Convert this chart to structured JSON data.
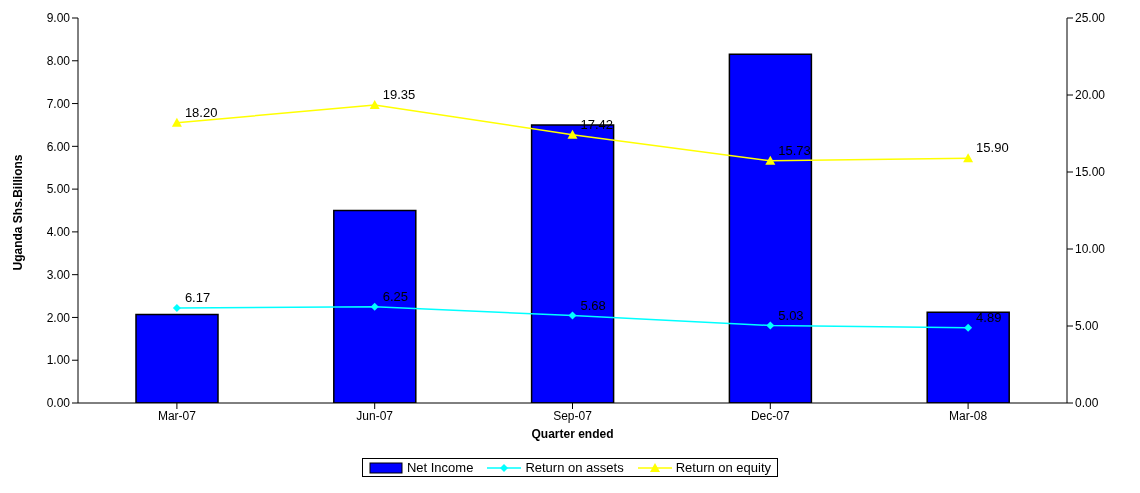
{
  "chart_data": {
    "type": "bar",
    "xlabel": "Quarter ended",
    "ylabel": "Uganda Shs.Billions",
    "categories": [
      "Mar-07",
      "Jun-07",
      "Sep-07",
      "Dec-07",
      "Mar-08"
    ],
    "series": [
      {
        "name": "Net Income",
        "color": "#0000ff",
        "values": [
          2.07,
          4.5,
          6.5,
          8.15,
          2.12
        ]
      },
      {
        "name": "Return on assets",
        "type": "line",
        "color": "#00ffff",
        "axis": "y2",
        "marker": "diamond",
        "values": [
          6.17,
          6.25,
          5.68,
          5.03,
          4.89
        ],
        "value_labels": [
          "6.17",
          "6.25",
          "5.68",
          "5.03",
          "4.89"
        ]
      },
      {
        "name": "Return on equity",
        "type": "line",
        "color": "#ffff00",
        "axis": "y2",
        "marker": "triangle",
        "values": [
          18.2,
          19.35,
          17.42,
          15.73,
          15.9
        ],
        "value_labels": [
          "18.20",
          "19.35",
          "17.42",
          "15.73",
          "15.90"
        ]
      }
    ],
    "ylim": [
      0,
      9
    ],
    "yticks": [
      {
        "value": 0,
        "label": "0.00"
      },
      {
        "value": 1,
        "label": "1.00"
      },
      {
        "value": 2,
        "label": "2.00"
      },
      {
        "value": 3,
        "label": "3.00"
      },
      {
        "value": 4,
        "label": "4.00"
      },
      {
        "value": 5,
        "label": "5.00"
      },
      {
        "value": 6,
        "label": "6.00"
      },
      {
        "value": 7,
        "label": "7.00"
      },
      {
        "value": 8,
        "label": "8.00"
      },
      {
        "value": 9,
        "label": "9.00"
      }
    ],
    "y2lim": [
      0,
      25
    ],
    "y2ticks": [
      {
        "value": 0,
        "label": "0.00"
      },
      {
        "value": 5,
        "label": "5.00"
      },
      {
        "value": 10,
        "label": "10.00"
      },
      {
        "value": 15,
        "label": "15.00"
      },
      {
        "value": 20,
        "label": "20.00"
      },
      {
        "value": 25,
        "label": "25.00"
      }
    ],
    "grid": false,
    "legend": "bottom"
  }
}
